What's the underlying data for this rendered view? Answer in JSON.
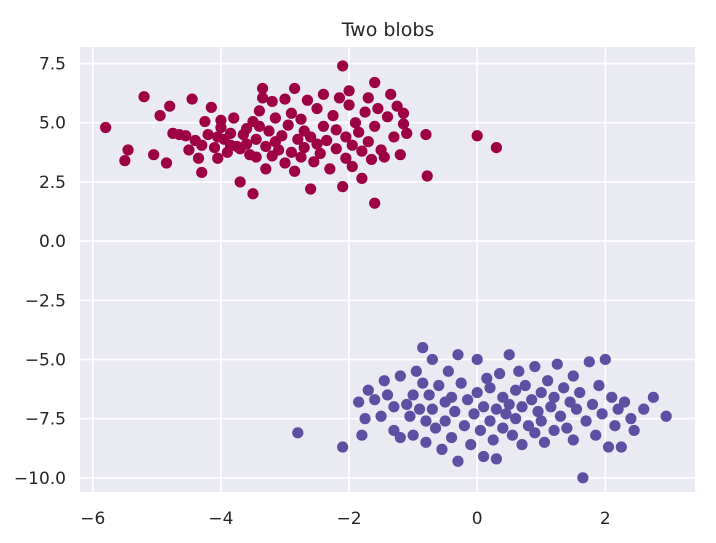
{
  "chart_data": {
    "type": "scatter",
    "title": "Two blobs",
    "xlabel": "",
    "ylabel": "",
    "xlim": [
      -6.2,
      3.4
    ],
    "ylim": [
      -10.6,
      8.2
    ],
    "x_ticks": [
      -6,
      -4,
      -2,
      0,
      2
    ],
    "y_ticks": [
      7.5,
      5.0,
      2.5,
      0.0,
      -2.5,
      -5.0,
      -7.5,
      -10.0
    ],
    "x_tick_labels": [
      "−6",
      "−4",
      "−2",
      "0",
      "2"
    ],
    "y_tick_labels": [
      "7.5",
      "5.0",
      "2.5",
      "0.0",
      "−2.5",
      "−5.0",
      "−7.5",
      "−10.0"
    ],
    "grid": true,
    "background_color": "#eaeaf2",
    "grid_color": "#ffffff",
    "legend": "none",
    "series": [
      {
        "color": "#9e0142",
        "points": [
          [
            -5.8,
            4.8
          ],
          [
            -5.5,
            3.4
          ],
          [
            -5.45,
            3.85
          ],
          [
            -5.2,
            6.1
          ],
          [
            -5.05,
            3.65
          ],
          [
            -4.95,
            5.3
          ],
          [
            -4.85,
            3.3
          ],
          [
            -4.8,
            5.7
          ],
          [
            -4.75,
            4.55
          ],
          [
            -4.65,
            4.5
          ],
          [
            -4.55,
            4.45
          ],
          [
            -4.5,
            3.85
          ],
          [
            -4.45,
            6.0
          ],
          [
            -4.4,
            4.25
          ],
          [
            -4.35,
            3.5
          ],
          [
            -4.3,
            2.9
          ],
          [
            -4.3,
            4.05
          ],
          [
            -4.25,
            5.05
          ],
          [
            -4.2,
            4.5
          ],
          [
            -4.15,
            5.65
          ],
          [
            -4.1,
            3.95
          ],
          [
            -4.05,
            4.4
          ],
          [
            -4.05,
            3.5
          ],
          [
            -4.0,
            4.8
          ],
          [
            -4.0,
            5.1
          ],
          [
            -3.95,
            4.3
          ],
          [
            -3.9,
            3.75
          ],
          [
            -3.85,
            4.05
          ],
          [
            -3.85,
            4.55
          ],
          [
            -3.8,
            5.2
          ],
          [
            -3.75,
            4.0
          ],
          [
            -3.7,
            3.9
          ],
          [
            -3.7,
            2.5
          ],
          [
            -3.65,
            4.5
          ],
          [
            -3.6,
            4.75
          ],
          [
            -3.6,
            4.1
          ],
          [
            -3.55,
            3.65
          ],
          [
            -3.5,
            5.05
          ],
          [
            -3.5,
            2.0
          ],
          [
            -3.45,
            4.3
          ],
          [
            -3.45,
            3.55
          ],
          [
            -3.4,
            5.5
          ],
          [
            -3.4,
            4.85
          ],
          [
            -3.35,
            6.05
          ],
          [
            -3.35,
            6.45
          ],
          [
            -3.3,
            4.0
          ],
          [
            -3.3,
            3.05
          ],
          [
            -3.25,
            4.65
          ],
          [
            -3.2,
            5.9
          ],
          [
            -3.2,
            3.6
          ],
          [
            -3.15,
            4.2
          ],
          [
            -3.15,
            5.2
          ],
          [
            -3.1,
            3.85
          ],
          [
            -3.05,
            4.45
          ],
          [
            -3.0,
            6.0
          ],
          [
            -3.0,
            3.3
          ],
          [
            -2.95,
            4.9
          ],
          [
            -2.9,
            3.75
          ],
          [
            -2.9,
            5.4
          ],
          [
            -2.85,
            6.45
          ],
          [
            -2.85,
            2.95
          ],
          [
            -2.8,
            4.3
          ],
          [
            -2.75,
            5.15
          ],
          [
            -2.75,
            3.55
          ],
          [
            -2.7,
            4.65
          ],
          [
            -2.7,
            3.95
          ],
          [
            -2.65,
            5.95
          ],
          [
            -2.6,
            2.2
          ],
          [
            -2.6,
            4.4
          ],
          [
            -2.55,
            3.35
          ],
          [
            -2.5,
            5.6
          ],
          [
            -2.5,
            4.1
          ],
          [
            -2.45,
            3.7
          ],
          [
            -2.4,
            6.2
          ],
          [
            -2.4,
            4.85
          ],
          [
            -2.35,
            4.25
          ],
          [
            -2.3,
            3.05
          ],
          [
            -2.25,
            5.3
          ],
          [
            -2.2,
            3.9
          ],
          [
            -2.2,
            4.7
          ],
          [
            -2.15,
            6.05
          ],
          [
            -2.1,
            7.4
          ],
          [
            -2.1,
            2.3
          ],
          [
            -2.05,
            3.5
          ],
          [
            -2.05,
            4.4
          ],
          [
            -2.0,
            5.75
          ],
          [
            -2.0,
            6.35
          ],
          [
            -1.95,
            4.05
          ],
          [
            -1.95,
            3.15
          ],
          [
            -1.9,
            5.0
          ],
          [
            -1.85,
            4.6
          ],
          [
            -1.8,
            2.65
          ],
          [
            -1.8,
            3.8
          ],
          [
            -1.75,
            5.45
          ],
          [
            -1.7,
            4.2
          ],
          [
            -1.7,
            6.05
          ],
          [
            -1.65,
            3.45
          ],
          [
            -1.6,
            1.6
          ],
          [
            -1.6,
            6.7
          ],
          [
            -1.6,
            4.85
          ],
          [
            -1.55,
            5.6
          ],
          [
            -1.5,
            3.85
          ],
          [
            -1.45,
            3.55
          ],
          [
            -1.4,
            5.25
          ],
          [
            -1.35,
            6.2
          ],
          [
            -1.3,
            4.4
          ],
          [
            -1.25,
            5.7
          ],
          [
            -1.2,
            3.65
          ],
          [
            -1.15,
            5.4
          ],
          [
            -1.15,
            4.95
          ],
          [
            -1.1,
            4.55
          ],
          [
            -0.8,
            4.5
          ],
          [
            -0.78,
            2.75
          ],
          [
            0.0,
            4.45
          ],
          [
            0.3,
            3.95
          ]
        ]
      },
      {
        "color": "#5e4fa2",
        "points": [
          [
            -2.8,
            -8.1
          ],
          [
            -2.1,
            -8.7
          ],
          [
            -1.85,
            -6.8
          ],
          [
            -1.8,
            -8.2
          ],
          [
            -1.75,
            -7.5
          ],
          [
            -1.7,
            -6.3
          ],
          [
            -1.6,
            -6.7
          ],
          [
            -1.5,
            -7.4
          ],
          [
            -1.45,
            -5.9
          ],
          [
            -1.4,
            -6.5
          ],
          [
            -1.3,
            -7.0
          ],
          [
            -1.3,
            -8.0
          ],
          [
            -1.2,
            -5.7
          ],
          [
            -1.2,
            -8.3
          ],
          [
            -1.1,
            -6.9
          ],
          [
            -1.05,
            -7.4
          ],
          [
            -1.0,
            -6.5
          ],
          [
            -1.0,
            -8.2
          ],
          [
            -0.95,
            -5.5
          ],
          [
            -0.9,
            -7.1
          ],
          [
            -0.85,
            -4.5
          ],
          [
            -0.85,
            -6.0
          ],
          [
            -0.8,
            -7.6
          ],
          [
            -0.8,
            -8.5
          ],
          [
            -0.75,
            -6.5
          ],
          [
            -0.7,
            -5.0
          ],
          [
            -0.7,
            -7.1
          ],
          [
            -0.65,
            -7.9
          ],
          [
            -0.6,
            -6.1
          ],
          [
            -0.55,
            -8.8
          ],
          [
            -0.5,
            -6.8
          ],
          [
            -0.5,
            -7.6
          ],
          [
            -0.45,
            -5.5
          ],
          [
            -0.4,
            -6.6
          ],
          [
            -0.4,
            -8.3
          ],
          [
            -0.35,
            -7.2
          ],
          [
            -0.3,
            -4.8
          ],
          [
            -0.3,
            -9.3
          ],
          [
            -0.25,
            -6.0
          ],
          [
            -0.2,
            -7.8
          ],
          [
            -0.15,
            -6.7
          ],
          [
            -0.1,
            -8.6
          ],
          [
            -0.05,
            -7.3
          ],
          [
            0.0,
            -5.0
          ],
          [
            0.0,
            -6.4
          ],
          [
            0.05,
            -8.0
          ],
          [
            0.1,
            -7.0
          ],
          [
            0.1,
            -9.1
          ],
          [
            0.15,
            -5.8
          ],
          [
            0.2,
            -7.6
          ],
          [
            0.2,
            -6.2
          ],
          [
            0.25,
            -8.4
          ],
          [
            0.3,
            -7.1
          ],
          [
            0.3,
            -9.2
          ],
          [
            0.35,
            -5.6
          ],
          [
            0.4,
            -6.6
          ],
          [
            0.4,
            -7.9
          ],
          [
            0.45,
            -7.3
          ],
          [
            0.5,
            -4.8
          ],
          [
            0.5,
            -6.9
          ],
          [
            0.55,
            -8.2
          ],
          [
            0.6,
            -6.3
          ],
          [
            0.6,
            -7.5
          ],
          [
            0.65,
            -5.5
          ],
          [
            0.7,
            -8.6
          ],
          [
            0.7,
            -7.0
          ],
          [
            0.75,
            -6.1
          ],
          [
            0.8,
            -7.8
          ],
          [
            0.85,
            -6.7
          ],
          [
            0.9,
            -5.3
          ],
          [
            0.9,
            -8.1
          ],
          [
            0.95,
            -7.2
          ],
          [
            1.0,
            -6.4
          ],
          [
            1.0,
            -7.6
          ],
          [
            1.05,
            -8.5
          ],
          [
            1.1,
            -5.9
          ],
          [
            1.15,
            -7.0
          ],
          [
            1.2,
            -6.6
          ],
          [
            1.2,
            -8.0
          ],
          [
            1.25,
            -5.2
          ],
          [
            1.3,
            -7.4
          ],
          [
            1.35,
            -6.2
          ],
          [
            1.4,
            -7.9
          ],
          [
            1.45,
            -6.8
          ],
          [
            1.5,
            -5.7
          ],
          [
            1.5,
            -8.4
          ],
          [
            1.55,
            -7.1
          ],
          [
            1.6,
            -6.4
          ],
          [
            1.65,
            -10.0
          ],
          [
            1.7,
            -7.6
          ],
          [
            1.75,
            -5.1
          ],
          [
            1.8,
            -6.9
          ],
          [
            1.85,
            -8.2
          ],
          [
            1.9,
            -6.1
          ],
          [
            1.95,
            -7.3
          ],
          [
            2.0,
            -5.0
          ],
          [
            2.05,
            -8.7
          ],
          [
            2.1,
            -6.6
          ],
          [
            2.15,
            -7.8
          ],
          [
            2.2,
            -7.1
          ],
          [
            2.25,
            -8.7
          ],
          [
            2.3,
            -6.8
          ],
          [
            2.4,
            -7.5
          ],
          [
            2.45,
            -8.0
          ],
          [
            2.6,
            -7.1
          ],
          [
            2.75,
            -6.6
          ],
          [
            2.95,
            -7.4
          ]
        ]
      }
    ]
  }
}
